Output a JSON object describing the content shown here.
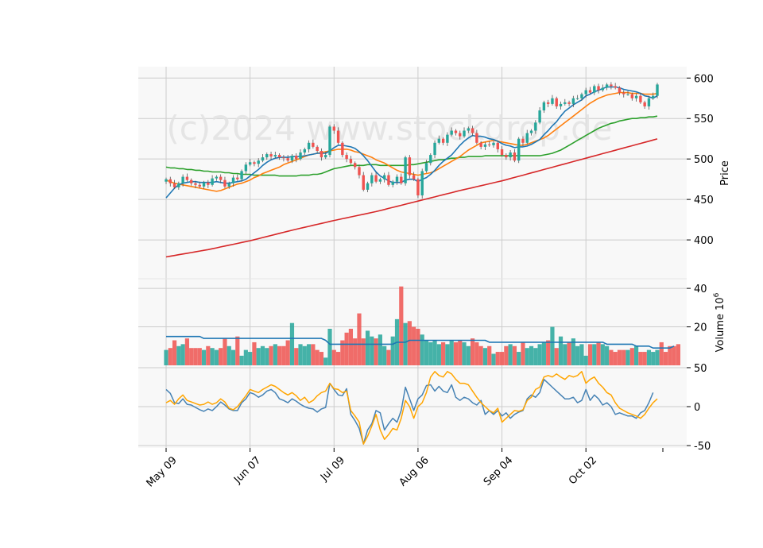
{
  "watermark": "(c)2024 www.stockdrop.de",
  "colors": {
    "up": "#26a69a",
    "down": "#ef5350",
    "panel_bg": "#f8f8f8",
    "grid": "#cccccc",
    "sma10": "#1f77b4",
    "sma20": "#ff7f0e",
    "sma50": "#2ca02c",
    "sma200": "#d62728",
    "vol_avg": "#1f77b4",
    "osc1": "#4682b4",
    "osc2": "#ffa500"
  },
  "chart_data": [
    {
      "type": "candlestick",
      "panel": "price",
      "ylabel": "Price",
      "ylim": [
        352,
        614
      ],
      "yticks": [
        400,
        450,
        500,
        550,
        600
      ],
      "xticks": [
        {
          "index": 0,
          "label": "May 09"
        },
        {
          "index": 20,
          "label": "Jun 07"
        },
        {
          "index": 40,
          "label": "Jul 09"
        },
        {
          "index": 60,
          "label": "Aug 06"
        },
        {
          "index": 80,
          "label": "Sep 04"
        },
        {
          "index": 100,
          "label": "Oct 02"
        }
      ],
      "close": [
        475,
        470,
        465,
        470,
        478,
        474,
        470,
        468,
        466,
        471,
        468,
        476,
        478,
        474,
        466,
        470,
        477,
        475,
        485,
        493,
        496,
        494,
        498,
        502,
        506,
        503,
        505,
        502,
        501,
        498,
        504,
        500,
        508,
        512,
        520,
        515,
        510,
        502,
        505,
        540,
        535,
        520,
        505,
        500,
        495,
        490,
        480,
        462,
        470,
        480,
        472,
        475,
        480,
        468,
        472,
        478,
        470,
        502,
        480,
        475,
        455,
        485,
        495,
        505,
        520,
        525,
        520,
        530,
        535,
        532,
        528,
        535,
        538,
        532,
        520,
        515,
        518,
        517,
        520,
        512,
        505,
        502,
        508,
        498,
        525,
        520,
        532,
        535,
        545,
        560,
        570,
        568,
        575,
        565,
        568,
        570,
        568,
        575,
        575,
        580,
        585,
        582,
        590,
        585,
        588,
        592,
        590,
        588,
        582,
        580,
        580,
        575,
        578,
        570,
        565,
        575,
        578,
        592
      ],
      "sma10": [
        452,
        458,
        464,
        468,
        470,
        471,
        472,
        472,
        471,
        471,
        471,
        471,
        472,
        471,
        470,
        470,
        471,
        472,
        473,
        475,
        479,
        483,
        487,
        492,
        496,
        499,
        501,
        502,
        502,
        502,
        503,
        503,
        503,
        504,
        505,
        506,
        507,
        507,
        507,
        510,
        514,
        517,
        517,
        516,
        515,
        513,
        509,
        504,
        498,
        491,
        484,
        479,
        476,
        473,
        471,
        471,
        471,
        474,
        475,
        475,
        472,
        475,
        477,
        481,
        486,
        492,
        497,
        501,
        505,
        511,
        517,
        522,
        526,
        529,
        528,
        528,
        527,
        525,
        524,
        522,
        519,
        517,
        516,
        514,
        515,
        515,
        516,
        518,
        521,
        524,
        530,
        535,
        541,
        546,
        553,
        559,
        563,
        567,
        570,
        573,
        578,
        580,
        583,
        585,
        587,
        589,
        589,
        589,
        588,
        586,
        585,
        584,
        583,
        581,
        578,
        577,
        575,
        578
      ],
      "sma20": [
        474,
        472,
        470,
        469,
        468,
        467,
        466,
        465,
        464,
        463,
        462,
        461,
        460,
        461,
        463,
        465,
        467,
        469,
        470,
        472,
        474,
        477,
        479,
        482,
        484,
        486,
        488,
        490,
        493,
        495,
        497,
        499,
        501,
        503,
        505,
        506,
        507,
        508,
        509,
        510,
        511,
        512,
        512,
        512,
        511,
        509,
        508,
        506,
        504,
        502,
        499,
        497,
        495,
        492,
        489,
        486,
        484,
        483,
        482,
        481,
        480,
        481,
        482,
        483,
        485,
        488,
        491,
        494,
        497,
        500,
        503,
        507,
        511,
        514,
        517,
        520,
        521,
        522,
        523,
        522,
        521,
        520,
        519,
        518,
        517,
        517,
        518,
        520,
        522,
        524,
        526,
        529,
        533,
        537,
        541,
        545,
        549,
        553,
        557,
        561,
        565,
        569,
        572,
        575,
        577,
        579,
        580,
        581,
        582,
        582,
        582,
        581,
        581,
        581,
        580,
        580,
        580,
        581
      ],
      "sma50": [
        490,
        489,
        489,
        488,
        488,
        487,
        487,
        486,
        486,
        485,
        485,
        484,
        484,
        484,
        483,
        483,
        482,
        482,
        481,
        481,
        481,
        480,
        480,
        480,
        480,
        480,
        480,
        479,
        479,
        479,
        479,
        479,
        480,
        480,
        480,
        481,
        481,
        482,
        484,
        486,
        488,
        489,
        490,
        491,
        492,
        492,
        492,
        492,
        493,
        493,
        493,
        492,
        492,
        492,
        492,
        492,
        492,
        492,
        493,
        493,
        494,
        495,
        496,
        497,
        498,
        499,
        499,
        500,
        501,
        501,
        502,
        502,
        503,
        503,
        503,
        503,
        504,
        504,
        504,
        504,
        504,
        504,
        504,
        504,
        504,
        504,
        504,
        504,
        504,
        504,
        505,
        506,
        507,
        509,
        511,
        514,
        517,
        520,
        523,
        526,
        529,
        532,
        535,
        538,
        540,
        542,
        544,
        545,
        547,
        548,
        549,
        550,
        550,
        551,
        551,
        552,
        552,
        553
      ],
      "sma200": [
        379,
        379.9,
        380.8,
        381.7,
        382.6,
        383.5,
        384.4,
        385.3,
        386.2,
        387.1,
        388,
        389.1,
        390.2,
        391.3,
        392.4,
        393.5,
        394.6,
        395.7,
        396.8,
        397.9,
        399,
        400.3,
        401.6,
        402.9,
        404.2,
        405.5,
        406.8,
        408.1,
        409.4,
        410.7,
        412,
        413.2,
        414.4,
        415.6,
        416.8,
        418,
        419.2,
        420.4,
        421.6,
        422.8,
        424,
        425.1,
        426.2,
        427.3,
        428.4,
        429.5,
        430.6,
        431.7,
        432.8,
        433.9,
        435,
        436.3,
        437.6,
        438.9,
        440.2,
        441.5,
        442.8,
        444.1,
        445.4,
        446.7,
        448,
        449.3,
        450.6,
        451.9,
        453.2,
        454.5,
        455.8,
        457.1,
        458.4,
        459.7,
        461,
        462.2,
        463.4,
        464.6,
        465.8,
        467,
        468.2,
        469.4,
        470.6,
        471.8,
        473,
        474.4,
        475.8,
        477.2,
        478.6,
        480,
        481.4,
        482.8,
        484.2,
        485.6,
        487,
        488.4,
        489.8,
        491.2,
        492.6,
        494,
        495.4,
        496.8,
        498.2,
        499.6,
        501,
        502.4,
        503.8,
        505.2,
        506.6,
        508,
        509.4,
        510.8,
        512.2,
        513.6,
        515,
        516.4,
        517.8,
        519.2,
        520.6,
        522,
        523.4,
        524.8
      ]
    },
    {
      "type": "bar",
      "panel": "volume",
      "ylabel": "Volume 10^6",
      "ylim": [
        0,
        45
      ],
      "yticks": [
        20,
        40
      ],
      "values": [
        8,
        9,
        13,
        10,
        11,
        14,
        9,
        9,
        9,
        8,
        10,
        9,
        8,
        9,
        14,
        10,
        8,
        15,
        5,
        8,
        7,
        12,
        9,
        10,
        9,
        10,
        11,
        10,
        10,
        13,
        22,
        9,
        11,
        10,
        11,
        11,
        8,
        7,
        4,
        19,
        8,
        7,
        13,
        17,
        19,
        14,
        27,
        14,
        18,
        15,
        14,
        16,
        10,
        8,
        15,
        24,
        41,
        22,
        23,
        20,
        19,
        16,
        13,
        12,
        13,
        11,
        12,
        11,
        13,
        12,
        13,
        12,
        10,
        14,
        12,
        10,
        9,
        10,
        6,
        7,
        7,
        10,
        11,
        10,
        7,
        12,
        9,
        10,
        9,
        11,
        12,
        13,
        20,
        9,
        15,
        11,
        12,
        14,
        10,
        11,
        5,
        11,
        11,
        12,
        11,
        10,
        8,
        7,
        8,
        8,
        8,
        9,
        10,
        7,
        7,
        8,
        7,
        8,
        12,
        7,
        10,
        10,
        11
      ]
    },
    {
      "type": "line",
      "panel": "volume_avg",
      "values": [
        15,
        15,
        15,
        15,
        15,
        15,
        15,
        15,
        15,
        14,
        14,
        14,
        14,
        14,
        14,
        14,
        14,
        14,
        14,
        14,
        14,
        14,
        14,
        14,
        14,
        14,
        14,
        14,
        14,
        14,
        14,
        14,
        14,
        14,
        14,
        14,
        14,
        14,
        13,
        11,
        11,
        11,
        11,
        11,
        11,
        11,
        11,
        11,
        11,
        11,
        11,
        11,
        11,
        11,
        11,
        12,
        12,
        12,
        13,
        13,
        13,
        13,
        13,
        13,
        13,
        13,
        13,
        13,
        13,
        13,
        13,
        13,
        13,
        13,
        13,
        13,
        13,
        12,
        12,
        12,
        12,
        12,
        12,
        12,
        12,
        12,
        12,
        12,
        12,
        12,
        12,
        12,
        12,
        12,
        12,
        12,
        12,
        12,
        12,
        12,
        12,
        12,
        12,
        12,
        12,
        11,
        11,
        11,
        11,
        11,
        11,
        11,
        10,
        10,
        10,
        10,
        9,
        9,
        9,
        9,
        9,
        10
      ]
    },
    {
      "type": "line",
      "panel": "oscillator",
      "ylim": [
        -53,
        53
      ],
      "yticks": [
        -50,
        0,
        50
      ],
      "series": [
        {
          "values": [
            22,
            17,
            5,
            4,
            10,
            3,
            2,
            -1,
            -4,
            -6,
            -3,
            -5,
            0,
            6,
            2,
            -3,
            -5,
            -5,
            5,
            10,
            18,
            16,
            12,
            15,
            20,
            22,
            18,
            10,
            8,
            5,
            10,
            7,
            3,
            0,
            -2,
            -3,
            -7,
            -3,
            -1,
            30,
            22,
            15,
            14,
            23,
            -10,
            -18,
            -28,
            -48,
            -30,
            -22,
            -5,
            -8,
            -30,
            -22,
            -15,
            -20,
            -5,
            25,
            10,
            -5,
            10,
            15,
            27,
            28,
            20,
            26,
            20,
            18,
            28,
            12,
            8,
            12,
            10,
            5,
            2,
            8,
            -10,
            -5,
            -10,
            -5,
            -12,
            -8,
            -15,
            -10,
            -7,
            -5,
            10,
            15,
            12,
            18,
            35,
            30,
            25,
            20,
            15,
            10,
            10,
            12,
            5,
            8,
            22,
            8,
            15,
            10,
            2,
            5,
            0,
            -10,
            -8,
            -10,
            -12,
            -12,
            -15,
            -8,
            -5,
            5,
            18
          ],
          "color_key": "osc1"
        },
        {
          "values": [
            5,
            8,
            3,
            10,
            15,
            8,
            6,
            4,
            2,
            3,
            6,
            3,
            5,
            10,
            6,
            -2,
            -4,
            0,
            7,
            14,
            22,
            20,
            18,
            22,
            25,
            28,
            26,
            22,
            18,
            15,
            18,
            14,
            8,
            12,
            5,
            8,
            14,
            18,
            20,
            30,
            23,
            22,
            18,
            20,
            -5,
            -12,
            -20,
            -48,
            -38,
            -25,
            -10,
            -30,
            -42,
            -36,
            -28,
            -30,
            -15,
            8,
            0,
            -15,
            0,
            5,
            18,
            38,
            45,
            40,
            38,
            45,
            42,
            35,
            30,
            30,
            28,
            20,
            12,
            5,
            0,
            -5,
            -8,
            -2,
            -20,
            -15,
            -10,
            -5,
            -6,
            -4,
            8,
            12,
            22,
            25,
            38,
            40,
            38,
            42,
            38,
            35,
            40,
            38,
            40,
            45,
            30,
            35,
            38,
            30,
            25,
            18,
            15,
            5,
            -2,
            -5,
            -8,
            -10,
            -12,
            -15,
            -10,
            -2,
            5,
            10
          ],
          "color_key": "osc2"
        }
      ]
    }
  ]
}
